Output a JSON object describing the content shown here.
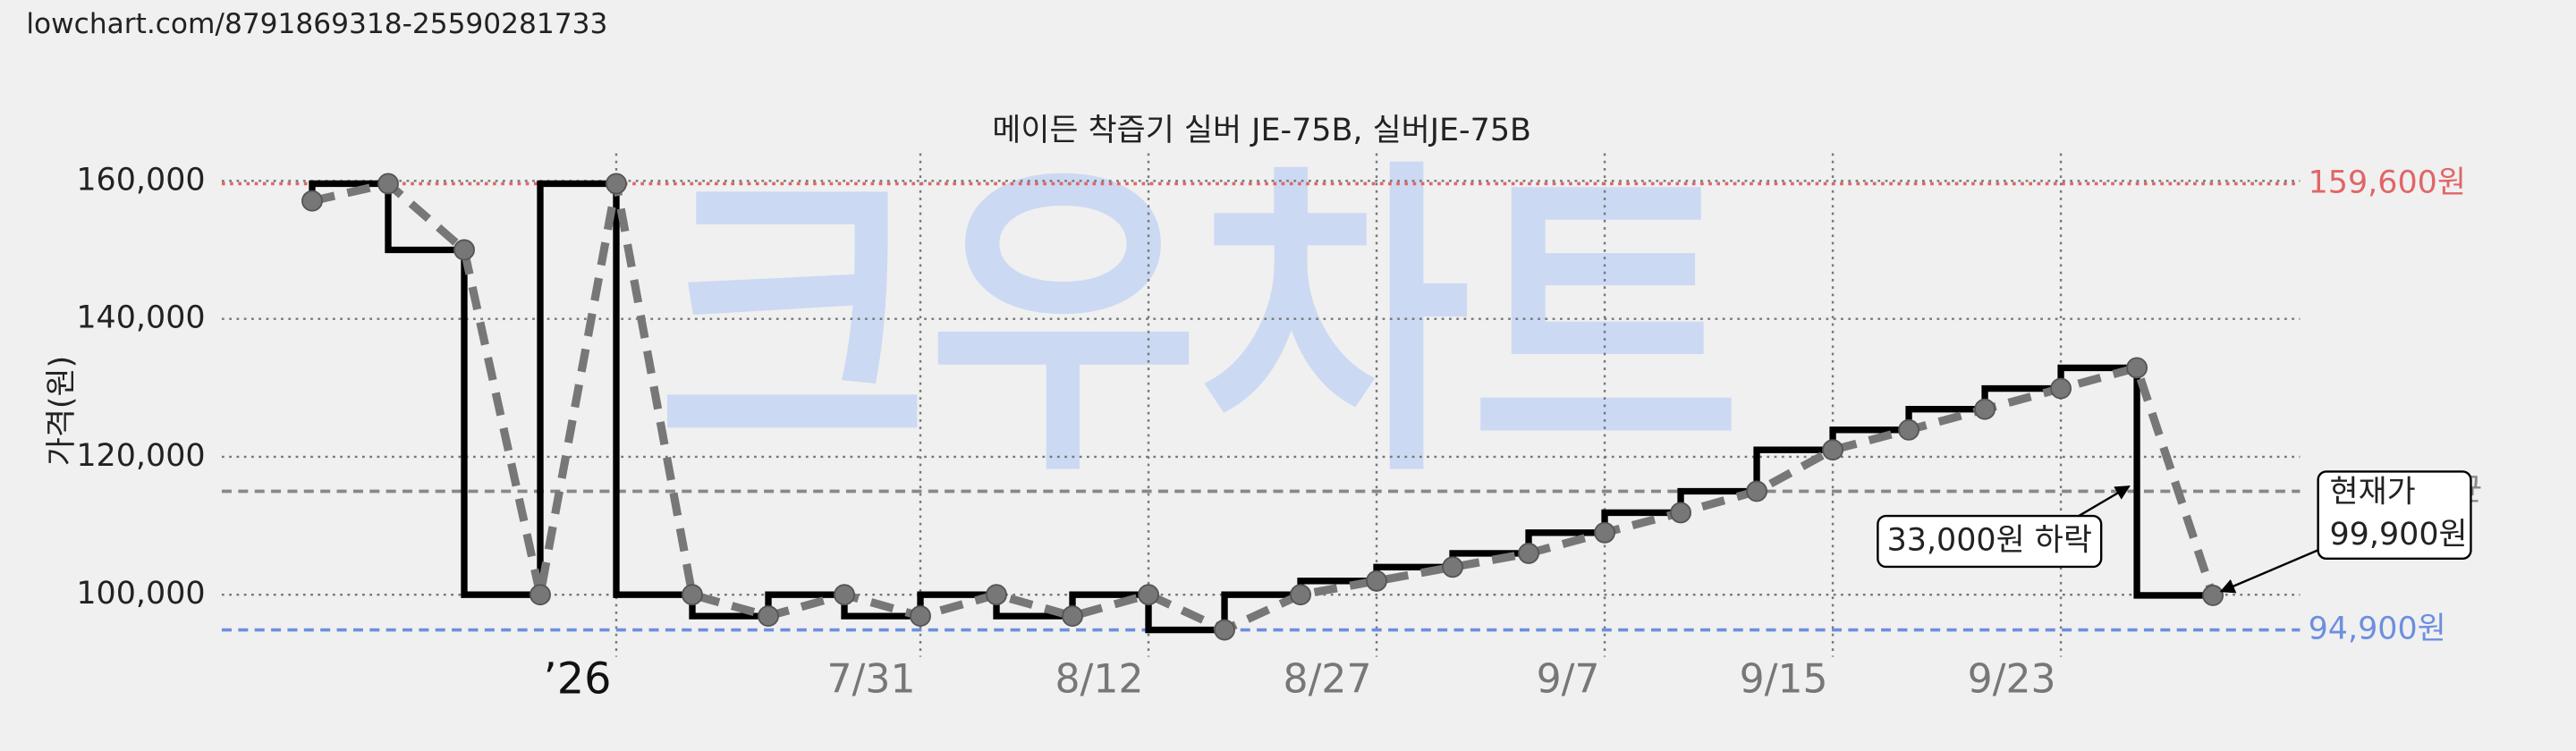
{
  "url": "lowchart.com/8791869318-25590281733",
  "chart_data": {
    "type": "step-price",
    "title": "메이든 착즙기 실버 JE-75B, 실버JE-75B",
    "y_label": "가격(원)",
    "watermark": "크우차트",
    "categories": [
      null,
      null,
      null,
      null,
      "’26",
      null,
      null,
      null,
      "7/31",
      null,
      null,
      "8/12",
      null,
      null,
      "8/27",
      null,
      null,
      "9/7",
      null,
      null,
      "9/15",
      null,
      null,
      "9/23",
      null,
      null
    ],
    "series": [
      {
        "color": "#000000",
        "marker_color": "#777777",
        "values": [
          157100,
          159600,
          150000,
          100000,
          159600,
          100000,
          96900,
          100000,
          96900,
          100000,
          96900,
          100000,
          94900,
          100000,
          102000,
          104000,
          106000,
          109000,
          111900,
          115000,
          121000,
          123900,
          126900,
          129900,
          132900,
          99900
        ]
      }
    ],
    "ylim": [
      91000,
      164000
    ],
    "yticks": [
      {
        "value": 100000,
        "label": "100,000"
      },
      {
        "value": 120000,
        "label": "120,000"
      },
      {
        "value": 140000,
        "label": "140,000"
      },
      {
        "value": 160000,
        "label": "160,000"
      }
    ],
    "grid": true,
    "reference_lines": [
      {
        "value": 159600,
        "label": "159,600원",
        "color": "#e06666",
        "style": "dotted"
      },
      {
        "value": 115000,
        "label": "평균",
        "color": "#888888",
        "style": "dashed"
      },
      {
        "value": 94900,
        "label": "94,900원",
        "color": "#6d8fe0",
        "style": "dashed"
      }
    ],
    "annotations": [
      {
        "lines": [
          "33,000원 하락"
        ]
      },
      {
        "lines": [
          "현재가",
          "99,900원"
        ]
      }
    ]
  }
}
